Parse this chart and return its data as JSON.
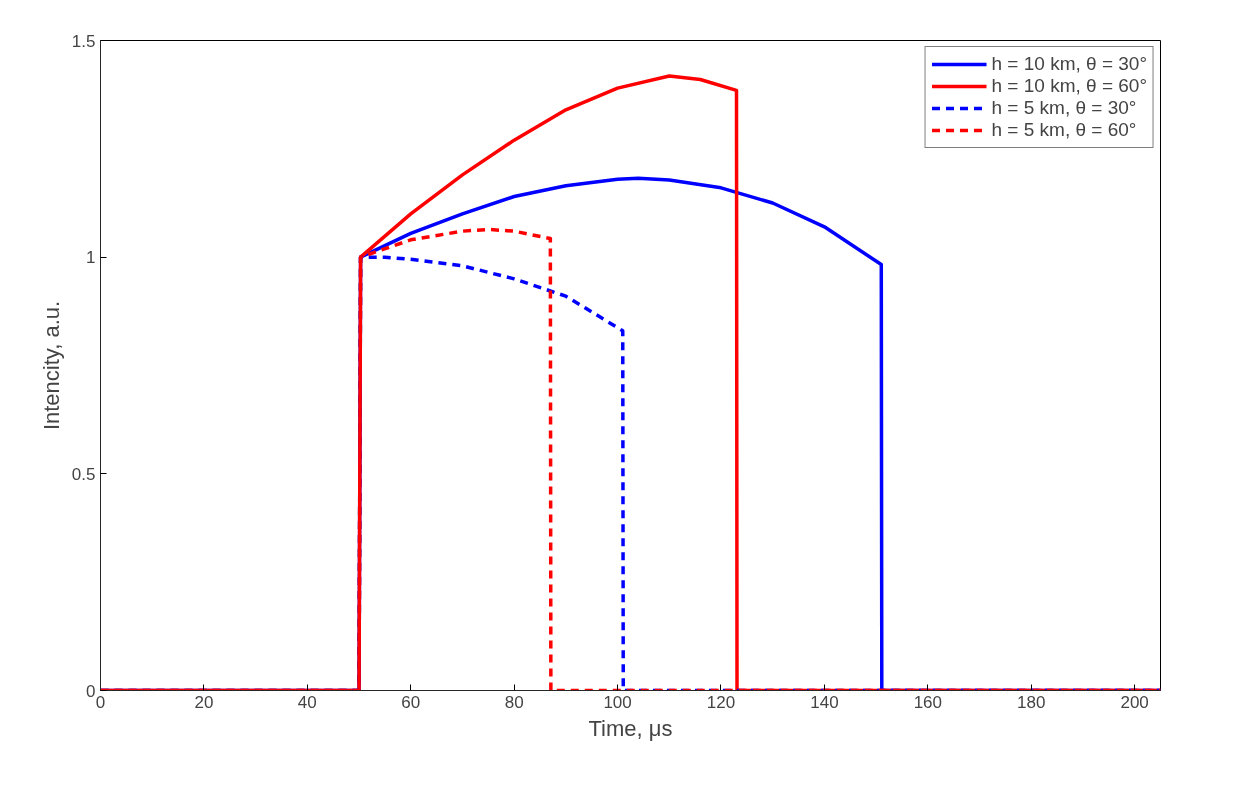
{
  "chart_data": {
    "type": "line",
    "xlabel": "Time, μs",
    "ylabel": "Intencity, a.u.",
    "xlim": [
      0,
      205
    ],
    "xticks": [
      0,
      20,
      40,
      60,
      80,
      100,
      120,
      140,
      160,
      180,
      200
    ],
    "ylim": [
      0,
      1.5
    ],
    "yticks": [
      0,
      0.5,
      1,
      1.5
    ],
    "grid": false,
    "legend": "top right",
    "marker": "none",
    "series": [
      {
        "name": "h = 10 km, θ = 30°",
        "color": "#0000ff",
        "line_style": "solid",
        "x": [
          0,
          50,
          50.3,
          60,
          70,
          80,
          90,
          100,
          104,
          110,
          120,
          130,
          140,
          151,
          151.1,
          205
        ],
        "values": [
          0,
          0,
          1,
          1.055,
          1.1,
          1.14,
          1.165,
          1.18,
          1.182,
          1.178,
          1.16,
          1.125,
          1.07,
          0.983,
          0,
          0
        ]
      },
      {
        "name": "h = 10 km, θ = 60°",
        "color": "#ff0000",
        "line_style": "solid",
        "x": [
          0,
          50,
          50.3,
          60,
          70,
          80,
          90,
          100,
          110,
          116,
          123,
          123.1,
          205
        ],
        "values": [
          0,
          0,
          1,
          1.1,
          1.19,
          1.27,
          1.34,
          1.39,
          1.418,
          1.41,
          1.385,
          0,
          0
        ]
      },
      {
        "name": "h = 5 km, θ = 30°",
        "color": "#0000ff",
        "line_style": "dashed",
        "x": [
          0,
          50,
          50.3,
          55,
          60,
          70,
          80,
          90,
          101,
          101.1,
          205
        ],
        "values": [
          0,
          0,
          1,
          1.0,
          0.995,
          0.98,
          0.95,
          0.91,
          0.83,
          0,
          0
        ]
      },
      {
        "name": "h = 5 km, θ = 60°",
        "color": "#ff0000",
        "line_style": "dashed",
        "x": [
          0,
          50,
          50.3,
          60,
          70,
          75,
          80,
          87,
          87.1,
          205
        ],
        "values": [
          0,
          0,
          1,
          1.04,
          1.06,
          1.064,
          1.06,
          1.043,
          0,
          0
        ]
      }
    ]
  }
}
